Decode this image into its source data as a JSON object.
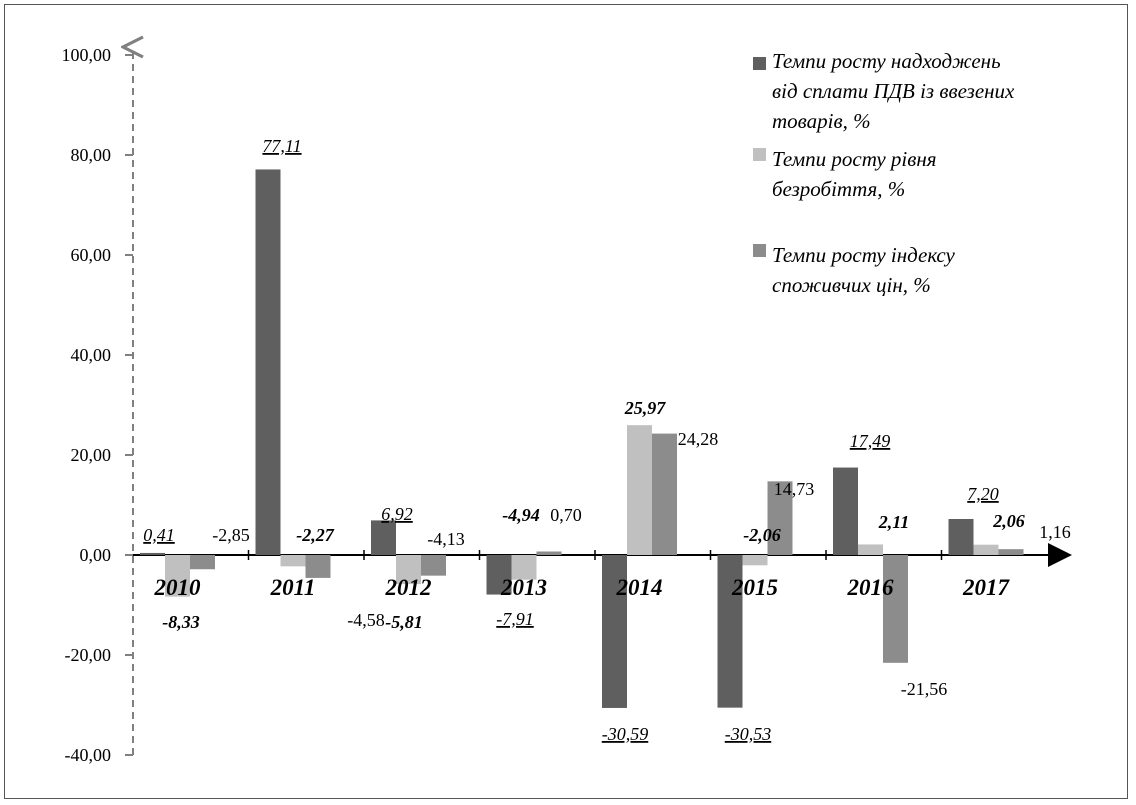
{
  "chart_data": {
    "type": "bar",
    "categories": [
      "2010",
      "2011",
      "2012",
      "2013",
      "2014",
      "2015",
      "2016",
      "2017"
    ],
    "series": [
      {
        "name": "Темпи росту надходжень від сплати ПДВ із ввезених товарів, %",
        "values": [
          0.41,
          77.11,
          6.92,
          -7.91,
          -30.59,
          -30.53,
          17.49,
          7.2
        ],
        "labels": [
          "0,41",
          "77,11",
          "6,92",
          "-7,91",
          "-30,59",
          "-30,53",
          "17,49",
          "7,20"
        ],
        "color": "#5f5f5f"
      },
      {
        "name": "Темпи росту рівня безробіття, %",
        "values": [
          -8.33,
          -2.27,
          -5.81,
          -4.94,
          25.97,
          -2.06,
          2.11,
          2.06
        ],
        "labels": [
          "-8,33",
          "-2,27",
          "-5,81",
          "-4,94",
          "25,97",
          "-2,06",
          "2,11",
          "2,06"
        ],
        "color": "#c0c0c0"
      },
      {
        "name": "Темпи росту індексу споживчих цін, %",
        "values": [
          -2.85,
          -4.58,
          -4.13,
          0.7,
          24.28,
          14.73,
          -21.56,
          1.16
        ],
        "labels": [
          "-2,85",
          "-4,58",
          "-4,13",
          "0,70",
          "24,28",
          "14,73",
          "-21,56",
          "1,16"
        ],
        "color": "#8c8c8c"
      }
    ],
    "legend_lines": [
      [
        "Темпи росту надходжень",
        "від сплати ПДВ із ввезених",
        "товарів, %"
      ],
      [
        "Темпи росту рівня",
        "безробіття, %"
      ],
      [
        "Темпи росту індексу",
        "споживчих цін, %"
      ]
    ],
    "yticks": [
      "100,00",
      "80,00",
      "60,00",
      "40,00",
      "20,00",
      "0,00",
      "-20,00",
      "-40,00"
    ],
    "ytick_values": [
      100,
      80,
      60,
      40,
      20,
      0,
      -20,
      -40
    ],
    "ylim": [
      -40,
      100
    ],
    "legend_position": "top-right",
    "grid": false
  }
}
